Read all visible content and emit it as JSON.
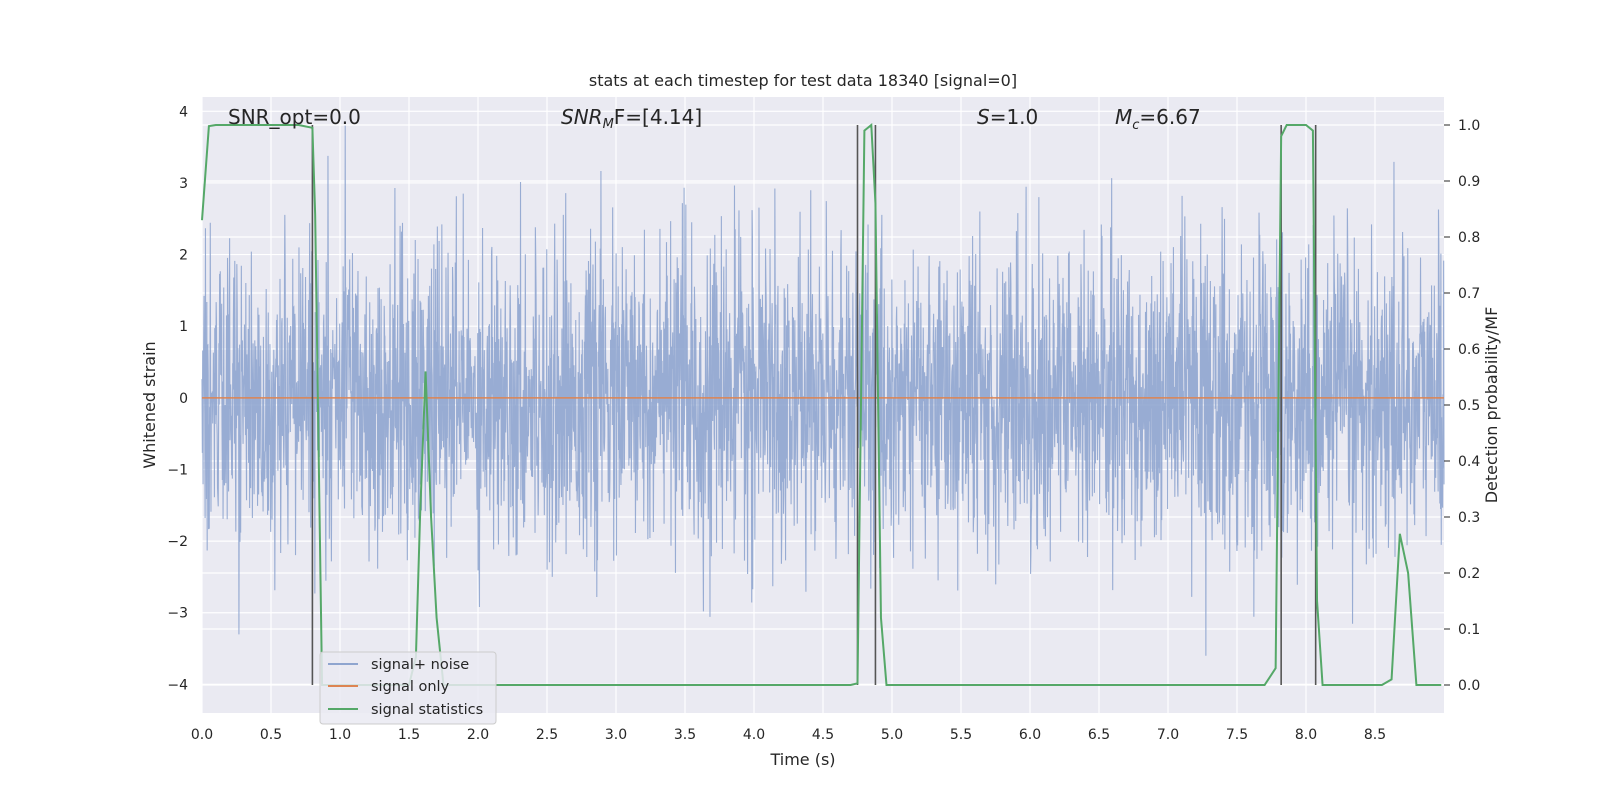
{
  "chart_data": {
    "type": "line",
    "title": "stats at each timestep for test data 18340 [signal=0]",
    "xlabel": "Time (s)",
    "ylabel": "Whitened strain",
    "y2label": "Detection probability/MF",
    "xlim": [
      0,
      9.0
    ],
    "ylim": [
      -4.4,
      4.2
    ],
    "y2lim": [
      -0.05,
      1.05
    ],
    "x_ticks": [
      "0.0",
      "0.5",
      "1.0",
      "1.5",
      "2.0",
      "2.5",
      "3.0",
      "3.5",
      "4.0",
      "4.5",
      "5.0",
      "5.5",
      "6.0",
      "6.5",
      "7.0",
      "7.5",
      "8.0",
      "8.5"
    ],
    "y_ticks": [
      "4",
      "3",
      "2",
      "1",
      "0",
      "−1",
      "−2",
      "−3",
      "−4"
    ],
    "y2_ticks": [
      "1.0",
      "0.9",
      "0.8",
      "0.7",
      "0.6",
      "0.5",
      "0.4",
      "0.3",
      "0.2",
      "0.1",
      "0.0"
    ],
    "grid": true,
    "legend_position": "lower-left",
    "annotations": {
      "snr_opt": "SNR_opt=0.0",
      "snr_mf_prefix": "SNR",
      "snr_mf_sub": "M",
      "snr_mf_suffix": "F=[4.14]",
      "s_var": "S",
      "s_value": "=1.0",
      "mc_var": "M",
      "mc_sub": "c",
      "mc_value": "=6.67"
    },
    "series": [
      {
        "name": "signal+ noise",
        "color": "#8fa5cf",
        "description": "whitened noise, approx. normal, amplitude range about -3.6 to 3.8"
      },
      {
        "name": "signal only",
        "color": "#dd8452",
        "values_constant": 0.0
      },
      {
        "name": "signal statistics",
        "color": "#55a868",
        "axis": "right",
        "x": [
          0.0,
          0.05,
          0.1,
          0.2,
          0.3,
          0.4,
          0.5,
          0.6,
          0.7,
          0.8,
          0.82,
          0.87,
          0.9,
          1.0,
          1.1,
          1.2,
          1.3,
          1.4,
          1.5,
          1.55,
          1.58,
          1.62,
          1.66,
          1.7,
          1.75,
          1.8,
          1.9,
          2.0,
          2.5,
          3.0,
          3.5,
          4.0,
          4.5,
          4.6,
          4.7,
          4.75,
          4.8,
          4.85,
          4.88,
          4.92,
          4.96,
          5.0,
          5.5,
          6.0,
          6.5,
          7.0,
          7.5,
          7.6,
          7.7,
          7.78,
          7.82,
          7.86,
          7.9,
          8.0,
          8.05,
          8.08,
          8.12,
          8.18,
          8.3,
          8.4,
          8.55,
          8.62,
          8.68,
          8.74,
          8.8,
          8.86,
          8.92,
          8.98
        ],
        "values": [
          0.83,
          0.998,
          1.0,
          1.0,
          1.0,
          1.0,
          1.0,
          1.0,
          1.0,
          0.995,
          0.84,
          0.0,
          0.0,
          0.0,
          0.0,
          0.0,
          0.0,
          0.0,
          0.0,
          0.05,
          0.3,
          0.56,
          0.3,
          0.12,
          0.0,
          0.0,
          0.0,
          0.0,
          0.0,
          0.0,
          0.0,
          0.0,
          0.0,
          0.0,
          0.0,
          0.003,
          0.99,
          1.0,
          0.86,
          0.12,
          0.0,
          0.0,
          0.0,
          0.0,
          0.0,
          0.0,
          0.0,
          0.0,
          0.0,
          0.03,
          0.98,
          1.0,
          1.0,
          1.0,
          0.99,
          0.15,
          0.0,
          0.0,
          0.0,
          0.0,
          0.0,
          0.01,
          0.27,
          0.2,
          0.0,
          0.0,
          0.0,
          0.0
        ]
      }
    ],
    "vertical_markers": [
      0.8,
      4.75,
      4.88,
      7.82,
      8.07
    ],
    "marker_color": "#555555"
  }
}
